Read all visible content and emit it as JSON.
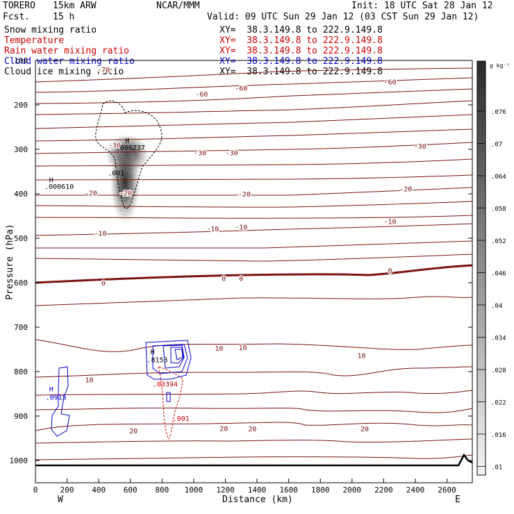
{
  "header": {
    "model": "TORERO",
    "resolution": "15km ARW",
    "fcst_label": "Fcst.",
    "fcst_value": "15 h",
    "org": "NCAR/MMM",
    "init": "Init: 18 UTC Sat 28 Jan 12",
    "valid": "Valid: 09 UTC Sun 29 Jan 12 (03 CST Sun 29 Jan 12)"
  },
  "fields": [
    {
      "name": "Snow mixing ratio",
      "xy": "XY=  38.3.149.8 to 222.9.149.8",
      "color": "#000000"
    },
    {
      "name": "Temperature",
      "xy": "XY=  38.3.149.8 to 222.9.149.8",
      "color": "#cc0000"
    },
    {
      "name": "Rain water mixing ratio",
      "xy": "XY=  38.3.149.8 to 222.9.149.8",
      "color": "#cc0000"
    },
    {
      "name": "Cloud water mixing ratio",
      "xy": "XY=  38.3.149.8 to 222.9.149.8",
      "color": "#0000cc"
    },
    {
      "name": "Cloud ice mixing ratio",
      "xy": "XY=  38.3.149.8 to 222.9.149.8",
      "color": "#000000"
    }
  ],
  "colorbar": {
    "unit": "g kg⁻¹",
    "labels": [
      ".076",
      ".07",
      ".064",
      ".058",
      ".052",
      ".046",
      ".04",
      ".034",
      ".028",
      ".022",
      ".016",
      ".01"
    ]
  },
  "chart_data": {
    "type": "contour",
    "xlabel": "Distance (km)",
    "ylabel": "Pressure (hPa)",
    "xlim": [
      0,
      2760
    ],
    "ylim": [
      1050,
      100
    ],
    "x_ticks": [
      0,
      200,
      400,
      600,
      800,
      1000,
      1200,
      1400,
      1600,
      1800,
      2000,
      2200,
      2400,
      2600
    ],
    "y_ticks": [
      100,
      200,
      300,
      400,
      500,
      600,
      700,
      800,
      900,
      1000
    ],
    "endpoints": {
      "left": "W",
      "right": "E"
    },
    "temperature_labels": [
      {
        "text": "-70",
        "x": 430,
        "p": 120
      },
      {
        "text": "-60",
        "x": 1050,
        "p": 175
      },
      {
        "text": "-60",
        "x": 1300,
        "p": 162
      },
      {
        "text": "-60",
        "x": 2240,
        "p": 148
      },
      {
        "text": "-30",
        "x": 500,
        "p": 290
      },
      {
        "text": "-30",
        "x": 1040,
        "p": 307
      },
      {
        "text": "-30",
        "x": 1240,
        "p": 307
      },
      {
        "text": "-30",
        "x": 2430,
        "p": 292
      },
      {
        "text": "-20",
        "x": 350,
        "p": 398
      },
      {
        "text": "-20",
        "x": 570,
        "p": 398
      },
      {
        "text": "-20",
        "x": 1320,
        "p": 400
      },
      {
        "text": "-20",
        "x": 2340,
        "p": 388
      },
      {
        "text": "-10",
        "x": 410,
        "p": 488
      },
      {
        "text": "-10",
        "x": 1120,
        "p": 478
      },
      {
        "text": "-10",
        "x": 1300,
        "p": 474
      },
      {
        "text": "-10",
        "x": 2240,
        "p": 462
      },
      {
        "text": "0",
        "x": 430,
        "p": 600
      },
      {
        "text": "0",
        "x": 1190,
        "p": 590
      },
      {
        "text": "0",
        "x": 1300,
        "p": 590
      },
      {
        "text": "0",
        "x": 2240,
        "p": 572
      },
      {
        "text": "10",
        "x": 340,
        "p": 818
      },
      {
        "text": "10",
        "x": 1160,
        "p": 747
      },
      {
        "text": "10",
        "x": 1310,
        "p": 745
      },
      {
        "text": "10",
        "x": 2060,
        "p": 763
      },
      {
        "text": "20",
        "x": 620,
        "p": 933
      },
      {
        "text": "20",
        "x": 1190,
        "p": 927
      },
      {
        "text": "20",
        "x": 1370,
        "p": 928
      },
      {
        "text": "20",
        "x": 2080,
        "p": 928
      }
    ],
    "maxima_labels": [
      {
        "text": "H",
        "x": 580,
        "p": 280,
        "color": "#000000"
      },
      {
        "text": ".006237",
        "x": 600,
        "p": 295,
        "color": "#000000"
      },
      {
        "text": ".001",
        "x": 510,
        "p": 352,
        "color": "#000000"
      },
      {
        "text": "H",
        "x": 100,
        "p": 368,
        "color": "#000000"
      },
      {
        "text": ".000610",
        "x": 150,
        "p": 383,
        "color": "#000000"
      },
      {
        "text": "H",
        "x": 740,
        "p": 755,
        "color": "#000000"
      },
      {
        "text": ".8153",
        "x": 770,
        "p": 773,
        "color": "#000000"
      },
      {
        "text": ".03394",
        "x": 820,
        "p": 827,
        "color": "#cc0000"
      },
      {
        "text": ".001",
        "x": 920,
        "p": 905,
        "color": "#cc0000"
      },
      {
        "text": "H",
        "x": 100,
        "p": 838,
        "color": "#0000cc"
      },
      {
        "text": ".0915",
        "x": 130,
        "p": 857,
        "color": "#0000cc"
      }
    ]
  }
}
